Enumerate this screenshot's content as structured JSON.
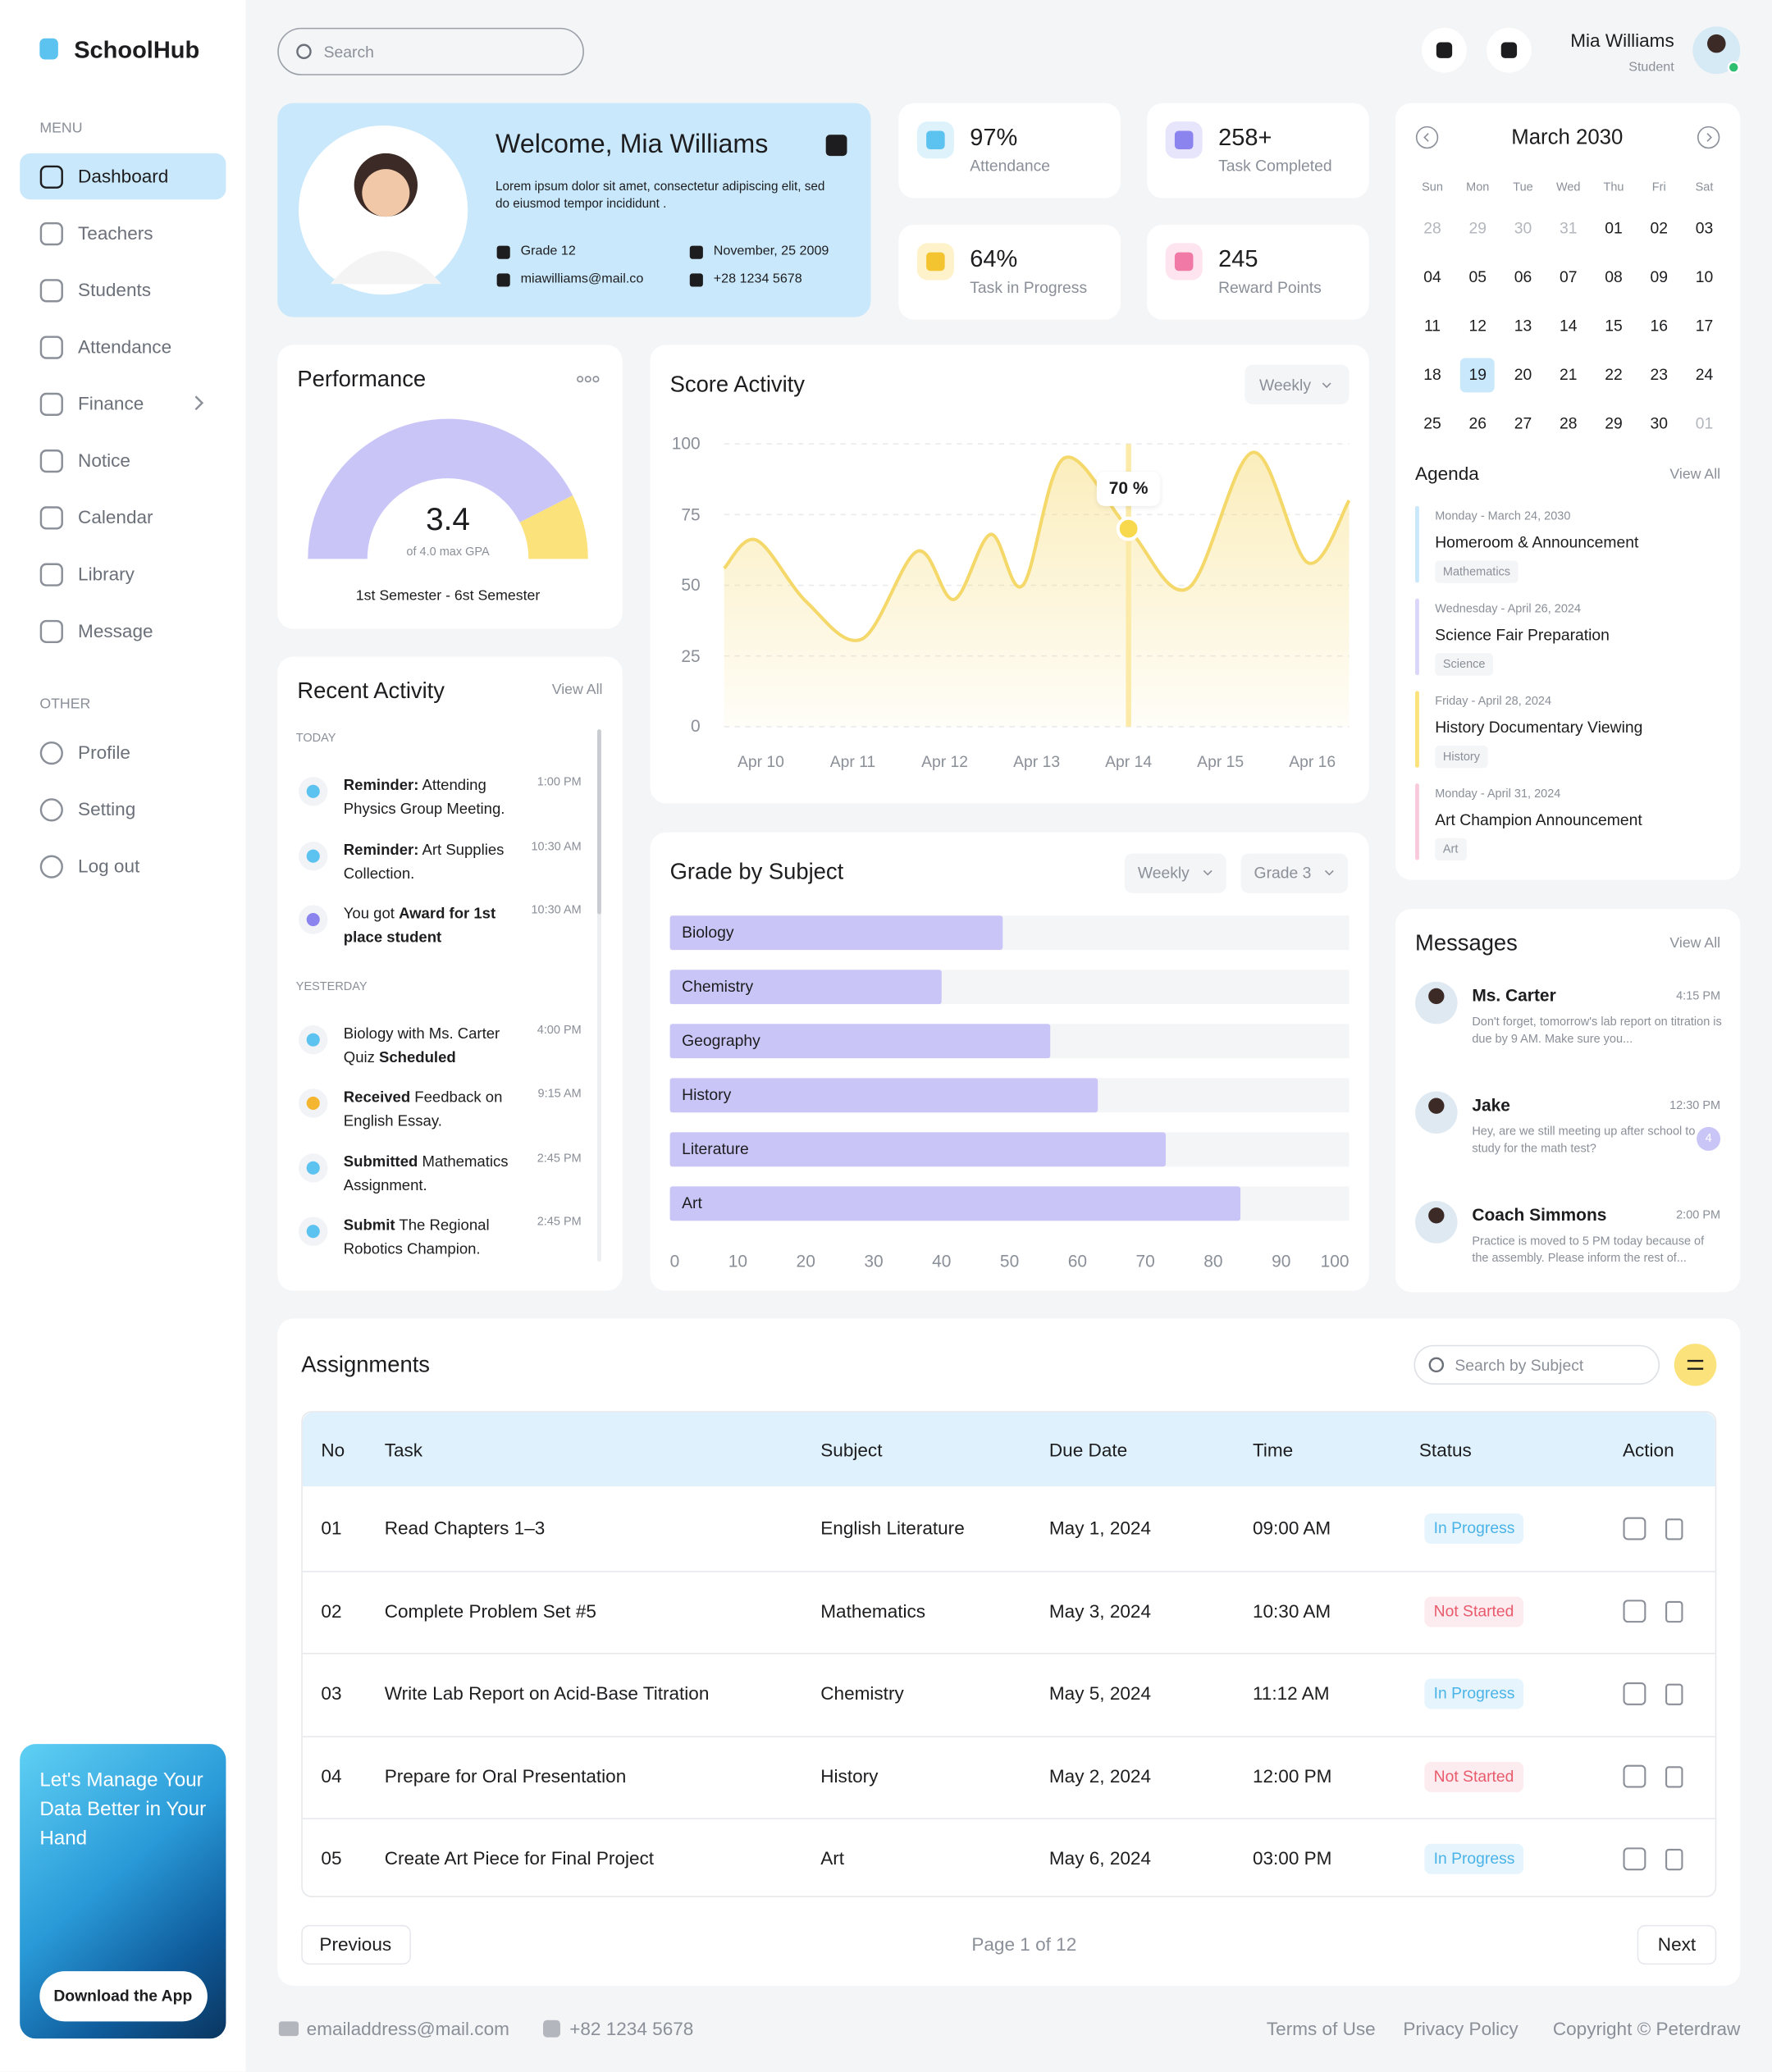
{
  "brand": "SchoolHub",
  "sidebar": {
    "menu_label": "MENU",
    "menu": [
      "Dashboard",
      "Teachers",
      "Students",
      "Attendance",
      "Finance",
      "Notice",
      "Calendar",
      "Library",
      "Message"
    ],
    "active": 0,
    "other_label": "OTHER",
    "other": [
      "Profile",
      "Setting",
      "Log out"
    ],
    "promo": "Let's Manage Your Data Better in Your Hand",
    "promo_button": "Download the App"
  },
  "header": {
    "search": "Search",
    "user_name": "Mia Williams",
    "user_role": "Student"
  },
  "welcome": {
    "title": "Welcome, Mia Williams",
    "text": "Lorem ipsum dolor sit amet, consectetur adipiscing elit, sed do eiusmod tempor incididunt .",
    "grade": "Grade 12",
    "birthday": "November, 25 2009",
    "email": "miawilliams@mail.co",
    "phone": "+28 1234 5678"
  },
  "stats": [
    {
      "value": "97%",
      "label": "Attendance",
      "color": "#5cc2f0",
      "bg": "#def2fc"
    },
    {
      "value": "258+",
      "label": "Task Completed",
      "color": "#8b84ee",
      "bg": "#e7e5fb"
    },
    {
      "value": "64%",
      "label": "Task in Progress",
      "color": "#f4c430",
      "bg": "#fdf2c9"
    },
    {
      "value": "245",
      "label": "Reward Points",
      "color": "#f07aa5",
      "bg": "#fde4ee"
    }
  ],
  "performance": {
    "type": "gauge",
    "title": "Performance",
    "value": 3.4,
    "max": 4.0,
    "max_label": "of 4.0 max GPA",
    "period": "1st Semester - 6st Semester",
    "color": "#c9c6f7",
    "rest_color": "#fbe27a"
  },
  "score_activity": {
    "type": "line",
    "title": "Score Activity",
    "filter": "Weekly",
    "x": [
      9.6,
      9.95,
      10.5,
      11.1,
      11.7,
      12.1,
      12.5,
      12.85,
      13.3,
      14.0,
      14.65,
      15.35,
      15.95,
      16.4
    ],
    "values": [
      56,
      66,
      44,
      31,
      62,
      45,
      68,
      50,
      95,
      70,
      49,
      97,
      58,
      80
    ],
    "xlim": [
      9.6,
      16.4
    ],
    "xticks": [
      {
        "value": 10,
        "label": "Apr 10"
      },
      {
        "value": 11,
        "label": "Apr 11"
      },
      {
        "value": 12,
        "label": "Apr 12"
      },
      {
        "value": 13,
        "label": "Apr 13"
      },
      {
        "value": 14,
        "label": "Apr 14"
      },
      {
        "value": 15,
        "label": "Apr 15"
      },
      {
        "value": 16,
        "label": "Apr 16"
      }
    ],
    "ylim": [
      0,
      100
    ],
    "yticks": [
      0,
      25,
      50,
      75,
      100
    ],
    "grid": true,
    "color": "#f5d86a",
    "annotation": {
      "x": 14,
      "value": 70,
      "text": "70 %"
    }
  },
  "grade_by_subject": {
    "type": "hbar",
    "title": "Grade by Subject",
    "filters": [
      "Weekly",
      "Grade 3"
    ],
    "categories": [
      "Biology",
      "Chemistry",
      "Geography",
      "History",
      "Literature",
      "Art"
    ],
    "values": [
      49,
      40,
      56,
      63,
      73,
      84
    ],
    "xlim": [
      0,
      100
    ],
    "xticks": [
      0,
      10,
      20,
      30,
      40,
      50,
      60,
      70,
      80,
      90,
      100
    ],
    "color": "#c9c6f7",
    "track_color": "#f4f5f7"
  },
  "calendar": {
    "month": "March 2030",
    "weekdays": [
      "Sun",
      "Mon",
      "Tue",
      "Wed",
      "Thu",
      "Fri",
      "Sat"
    ],
    "days": [
      {
        "label": "28",
        "muted": true
      },
      {
        "label": "29",
        "muted": true
      },
      {
        "label": "30",
        "muted": true
      },
      {
        "label": "31",
        "muted": true
      },
      {
        "label": "01"
      },
      {
        "label": "02"
      },
      {
        "label": "03"
      },
      {
        "label": "04"
      },
      {
        "label": "05"
      },
      {
        "label": "06"
      },
      {
        "label": "07"
      },
      {
        "label": "08"
      },
      {
        "label": "09"
      },
      {
        "label": "10"
      },
      {
        "label": "11"
      },
      {
        "label": "12"
      },
      {
        "label": "13"
      },
      {
        "label": "14"
      },
      {
        "label": "15"
      },
      {
        "label": "16"
      },
      {
        "label": "17"
      },
      {
        "label": "18"
      },
      {
        "label": "19",
        "selected": true
      },
      {
        "label": "20"
      },
      {
        "label": "21"
      },
      {
        "label": "22"
      },
      {
        "label": "23"
      },
      {
        "label": "24"
      },
      {
        "label": "25"
      },
      {
        "label": "26"
      },
      {
        "label": "27"
      },
      {
        "label": "28"
      },
      {
        "label": "29"
      },
      {
        "label": "30"
      },
      {
        "label": "01",
        "muted": true
      }
    ]
  },
  "agenda": {
    "title": "Agenda",
    "view_all": "View All",
    "items": [
      {
        "date": "Monday - March 24, 2030",
        "title": "Homeroom & Announcement",
        "tag": "Mathematics",
        "color": "#c9e8fb"
      },
      {
        "date": "Wednesday - April 26, 2024",
        "title": "Science Fair Preparation",
        "tag": "Science",
        "color": "#d9d6fa"
      },
      {
        "date": "Friday - April 28, 2024",
        "title": "History Documentary Viewing",
        "tag": "History",
        "color": "#fbe27a"
      },
      {
        "date": "Monday - April 31, 2024",
        "title": "Art Champion Announcement",
        "tag": "Art",
        "color": "#f9c9dc"
      }
    ]
  },
  "messages": {
    "title": "Messages",
    "view_all": "View All",
    "items": [
      {
        "name": "Ms. Carter",
        "time": "4:15 PM",
        "text": "Don't forget, tomorrow's lab report on titration is due by 9 AM. Make sure you..."
      },
      {
        "name": "Jake",
        "time": "12:30 PM",
        "text": "Hey, are we still meeting up after school to study for the math test?",
        "unread": "4"
      },
      {
        "name": "Coach Simmons",
        "time": "2:00 PM",
        "text": "Practice is moved to 5 PM today because of the assembly. Please inform the rest of..."
      }
    ]
  },
  "recent_activity": {
    "title": "Recent Activity",
    "view_all": "View All",
    "groups": [
      {
        "label": "TODAY",
        "items": [
          {
            "parts": [
              {
                "text": "Reminder:",
                "bold": true
              },
              {
                "text": " Attending Physics Group Meeting."
              }
            ],
            "time": "1:00 PM",
            "icon_color": "#5cc2f0"
          },
          {
            "parts": [
              {
                "text": "Reminder:",
                "bold": true
              },
              {
                "text": " Art Supplies Collection."
              }
            ],
            "time": "10:30 AM",
            "icon_color": "#5cc2f0"
          },
          {
            "parts": [
              {
                "text": "You got "
              },
              {
                "text": "Award for 1st place student",
                "bold": true
              }
            ],
            "time": "10:30 AM",
            "icon_color": "#8b84ee"
          }
        ]
      },
      {
        "label": "YESTERDAY",
        "items": [
          {
            "parts": [
              {
                "text": "Biology with Ms. Carter Quiz "
              },
              {
                "text": "Scheduled",
                "bold": true
              }
            ],
            "time": "4:00 PM",
            "icon_color": "#5cc2f0"
          },
          {
            "parts": [
              {
                "text": "Received",
                "bold": true
              },
              {
                "text": " Feedback on English Essay."
              }
            ],
            "time": "9:15 AM",
            "icon_color": "#f4b630"
          },
          {
            "parts": [
              {
                "text": "Submitted",
                "bold": true
              },
              {
                "text": " Mathematics Assignment."
              }
            ],
            "time": "2:45 PM",
            "icon_color": "#5cc2f0"
          },
          {
            "parts": [
              {
                "text": "Submit",
                "bold": true
              },
              {
                "text": " The Regional Robotics Champion."
              }
            ],
            "time": "2:45 PM",
            "icon_color": "#5cc2f0"
          }
        ]
      }
    ]
  },
  "assignments": {
    "title": "Assignments",
    "search": "Search by Subject",
    "columns": [
      "No",
      "Task",
      "Subject",
      "Due Date",
      "Time",
      "Status",
      "Action"
    ],
    "rows": [
      {
        "cells": [
          "01",
          "Read Chapters 1–3",
          "English Literature",
          "May 1, 2024",
          "09:00 AM",
          "In Progress"
        ],
        "status_color": "#4ab3e8",
        "status_bg": "#e6f5fd"
      },
      {
        "cells": [
          "02",
          "Complete Problem Set #5",
          "Mathematics",
          "May 3, 2024",
          "10:30 AM",
          "Not Started"
        ],
        "status_color": "#e85a6c",
        "status_bg": "#fdecef"
      },
      {
        "cells": [
          "03",
          "Write Lab Report on Acid-Base Titration",
          "Chemistry",
          "May 5, 2024",
          "11:12 AM",
          "In Progress"
        ],
        "status_color": "#4ab3e8",
        "status_bg": "#e6f5fd"
      },
      {
        "cells": [
          "04",
          "Prepare for Oral Presentation",
          "History",
          "May 2, 2024",
          "12:00 PM",
          "Not Started"
        ],
        "status_color": "#e85a6c",
        "status_bg": "#fdecef"
      },
      {
        "cells": [
          "05",
          "Create Art Piece for Final Project",
          "Art",
          "May 6, 2024",
          "03:00 PM",
          "In Progress"
        ],
        "status_color": "#4ab3e8",
        "status_bg": "#e6f5fd"
      }
    ],
    "previous": "Previous",
    "page": "Page 1 of 12",
    "next": "Next"
  },
  "footer": {
    "email": "emailaddress@mail.com",
    "phone": "+82 1234 5678",
    "links": [
      "Terms of Use",
      "Privacy Policy",
      "Copyright © Peterdraw"
    ]
  }
}
